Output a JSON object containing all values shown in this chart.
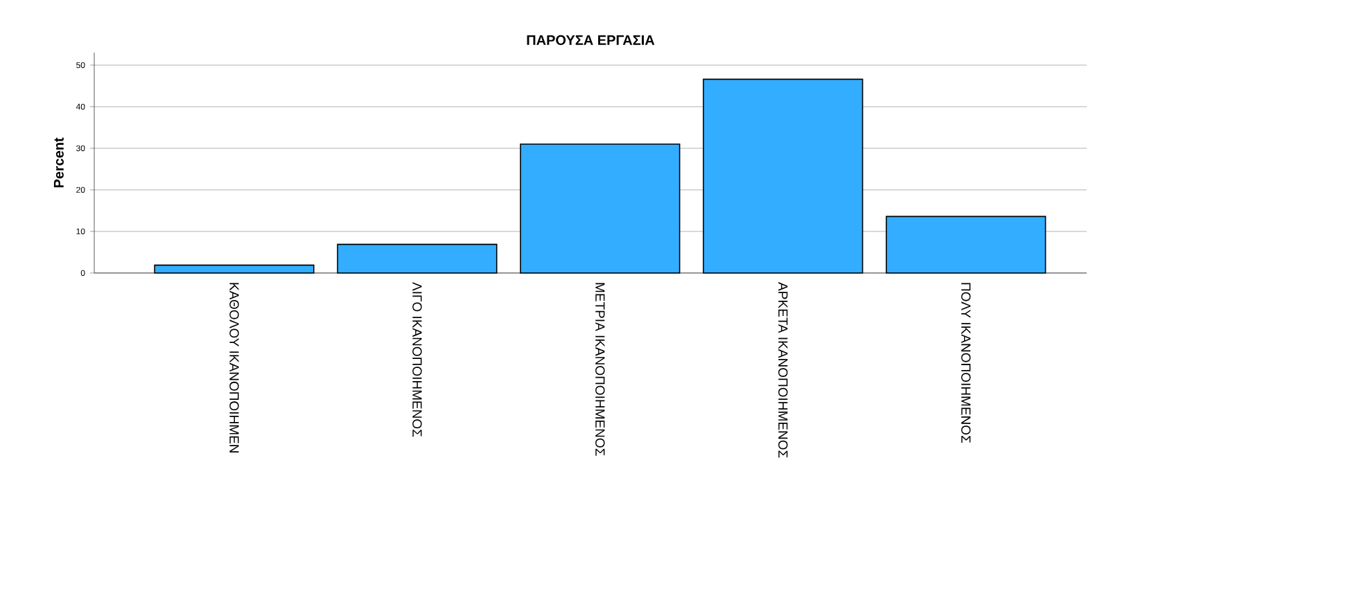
{
  "chart_data": {
    "type": "bar",
    "title": "ΠΑΡΟΥΣΑ ΕΡΓΑΣΙΑ",
    "ylabel": "Percent",
    "categories": [
      "ΚΑΘΟΛΟΥ ΙΚΑΝΟΠΟΙΗΜΕΝ",
      "ΛΙΓΟ ΙΚΑΝΟΠΟΙΗΜΕΝΟΣ",
      "ΜΕΤΡΙΑ ΙΚΑΝΟΠΟΙΗΜΕΝΟΣ",
      "ΑΡΚΕΤΑ ΙΚΑΝΟΠΟΙΗΜΕΝΟΣ",
      "ΠΟΛΥ ΙΚΑΝΟΠΟΙΗΜΕΝΟΣ"
    ],
    "values": [
      1.9,
      6.9,
      31.0,
      46.6,
      13.6
    ],
    "color": "#33adff",
    "ylim": [
      0,
      53
    ],
    "yticks": [
      0,
      10,
      20,
      30,
      40,
      50
    ],
    "grid": "y"
  }
}
